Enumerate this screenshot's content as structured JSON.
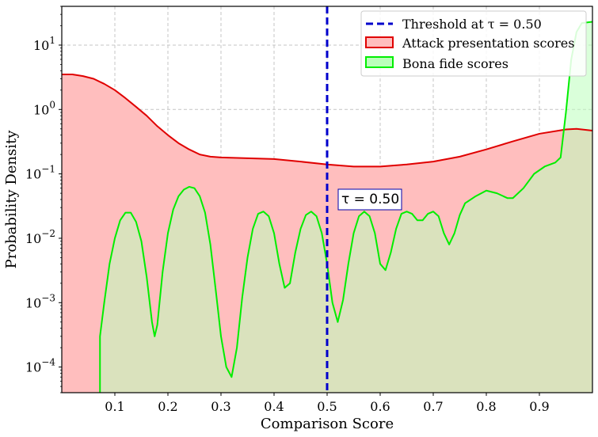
{
  "chart_data": {
    "type": "area",
    "xlabel": "Comparison Score",
    "ylabel": "Probability Density",
    "xlim": [
      0.0,
      1.0
    ],
    "ylim": [
      4e-05,
      40
    ],
    "yscale": "log",
    "grid": true,
    "legend_position": "top-right",
    "x_ticks": [
      0.1,
      0.2,
      0.3,
      0.4,
      0.5,
      0.6,
      0.7,
      0.8,
      0.9
    ],
    "x_tick_labels": [
      "0.1",
      "0.2",
      "0.3",
      "0.4",
      "0.5",
      "0.6",
      "0.7",
      "0.8",
      "0.9"
    ],
    "y_ticks": [
      {
        "value": 0.0001,
        "base": "10",
        "exp": "−4"
      },
      {
        "value": 0.001,
        "base": "10",
        "exp": "−3"
      },
      {
        "value": 0.01,
        "base": "10",
        "exp": "−2"
      },
      {
        "value": 0.1,
        "base": "10",
        "exp": "−1"
      },
      {
        "value": 1,
        "base": "10",
        "exp": "0"
      },
      {
        "value": 10,
        "base": "10",
        "exp": "1"
      }
    ],
    "threshold": {
      "value": 0.5,
      "label": "Threshold at τ = 0.50",
      "annotation": "τ = 0.50",
      "color": "#0000cc"
    },
    "series": [
      {
        "name": "Attack presentation scores",
        "line_color": "#e00000",
        "fill_color": "#ffbebe",
        "points": [
          [
            0.0,
            3.5
          ],
          [
            0.02,
            3.5
          ],
          [
            0.04,
            3.3
          ],
          [
            0.06,
            3.0
          ],
          [
            0.08,
            2.5
          ],
          [
            0.1,
            2.0
          ],
          [
            0.12,
            1.5
          ],
          [
            0.14,
            1.1
          ],
          [
            0.16,
            0.8
          ],
          [
            0.18,
            0.55
          ],
          [
            0.2,
            0.4
          ],
          [
            0.22,
            0.3
          ],
          [
            0.24,
            0.24
          ],
          [
            0.26,
            0.2
          ],
          [
            0.28,
            0.185
          ],
          [
            0.3,
            0.18
          ],
          [
            0.35,
            0.175
          ],
          [
            0.4,
            0.17
          ],
          [
            0.45,
            0.155
          ],
          [
            0.5,
            0.14
          ],
          [
            0.55,
            0.13
          ],
          [
            0.6,
            0.13
          ],
          [
            0.65,
            0.14
          ],
          [
            0.7,
            0.155
          ],
          [
            0.75,
            0.185
          ],
          [
            0.8,
            0.24
          ],
          [
            0.85,
            0.32
          ],
          [
            0.9,
            0.42
          ],
          [
            0.95,
            0.49
          ],
          [
            0.97,
            0.5
          ],
          [
            1.0,
            0.47
          ]
        ]
      },
      {
        "name": "Bona fide scores",
        "line_color": "#00ee00",
        "fill_color": "#bbffbb",
        "points": [
          [
            0.072,
            0.0003
          ],
          [
            0.08,
            0.001
          ],
          [
            0.09,
            0.004
          ],
          [
            0.1,
            0.01
          ],
          [
            0.11,
            0.019
          ],
          [
            0.12,
            0.025
          ],
          [
            0.13,
            0.025
          ],
          [
            0.14,
            0.018
          ],
          [
            0.15,
            0.009
          ],
          [
            0.16,
            0.0025
          ],
          [
            0.17,
            0.0005
          ],
          [
            0.175,
            0.0003
          ],
          [
            0.18,
            0.00045
          ],
          [
            0.19,
            0.003
          ],
          [
            0.2,
            0.012
          ],
          [
            0.21,
            0.028
          ],
          [
            0.22,
            0.045
          ],
          [
            0.23,
            0.057
          ],
          [
            0.24,
            0.063
          ],
          [
            0.25,
            0.06
          ],
          [
            0.26,
            0.045
          ],
          [
            0.27,
            0.025
          ],
          [
            0.28,
            0.008
          ],
          [
            0.29,
            0.0016
          ],
          [
            0.3,
            0.0003
          ],
          [
            0.31,
            0.0001
          ],
          [
            0.32,
            7e-05
          ],
          [
            0.33,
            0.0002
          ],
          [
            0.34,
            0.0012
          ],
          [
            0.35,
            0.005
          ],
          [
            0.36,
            0.014
          ],
          [
            0.37,
            0.024
          ],
          [
            0.38,
            0.026
          ],
          [
            0.39,
            0.022
          ],
          [
            0.4,
            0.012
          ],
          [
            0.41,
            0.004
          ],
          [
            0.42,
            0.0017
          ],
          [
            0.43,
            0.002
          ],
          [
            0.44,
            0.006
          ],
          [
            0.45,
            0.014
          ],
          [
            0.46,
            0.023
          ],
          [
            0.47,
            0.026
          ],
          [
            0.48,
            0.022
          ],
          [
            0.49,
            0.012
          ],
          [
            0.5,
            0.004
          ],
          [
            0.51,
            0.001
          ],
          [
            0.52,
            0.0005
          ],
          [
            0.53,
            0.0011
          ],
          [
            0.54,
            0.004
          ],
          [
            0.55,
            0.012
          ],
          [
            0.56,
            0.022
          ],
          [
            0.57,
            0.026
          ],
          [
            0.58,
            0.022
          ],
          [
            0.59,
            0.012
          ],
          [
            0.6,
            0.004
          ],
          [
            0.61,
            0.0032
          ],
          [
            0.62,
            0.006
          ],
          [
            0.63,
            0.014
          ],
          [
            0.64,
            0.024
          ],
          [
            0.65,
            0.026
          ],
          [
            0.66,
            0.024
          ],
          [
            0.67,
            0.019
          ],
          [
            0.68,
            0.019
          ],
          [
            0.69,
            0.024
          ],
          [
            0.7,
            0.026
          ],
          [
            0.71,
            0.022
          ],
          [
            0.72,
            0.012
          ],
          [
            0.73,
            0.008
          ],
          [
            0.74,
            0.012
          ],
          [
            0.75,
            0.023
          ],
          [
            0.76,
            0.035
          ],
          [
            0.78,
            0.045
          ],
          [
            0.8,
            0.055
          ],
          [
            0.82,
            0.05
          ],
          [
            0.84,
            0.042
          ],
          [
            0.85,
            0.042
          ],
          [
            0.87,
            0.06
          ],
          [
            0.89,
            0.1
          ],
          [
            0.91,
            0.13
          ],
          [
            0.93,
            0.15
          ],
          [
            0.94,
            0.18
          ],
          [
            0.95,
            0.9
          ],
          [
            0.96,
            6.0
          ],
          [
            0.97,
            16.0
          ],
          [
            0.98,
            22.0
          ],
          [
            1.0,
            23.0
          ]
        ]
      }
    ]
  }
}
